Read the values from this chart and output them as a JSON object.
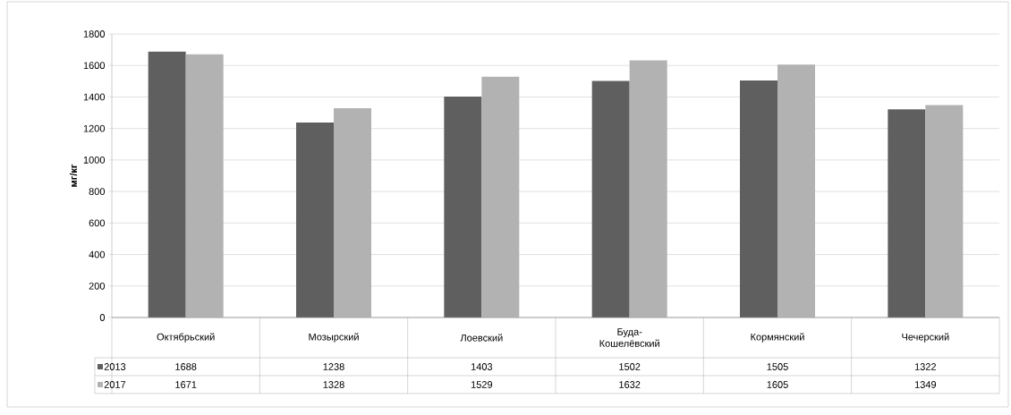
{
  "chart_data": {
    "type": "bar",
    "ylabel": "мг/кг",
    "categories": [
      "Октябрьский",
      "Мозырский",
      "Лоевский",
      "Буда-Кошелёвский",
      "Кормянский",
      "Чечерский"
    ],
    "series": [
      {
        "name": "2013",
        "color": "#5f5f5f",
        "values": [
          1688,
          1238,
          1403,
          1502,
          1505,
          1322
        ]
      },
      {
        "name": "2017",
        "color": "#b2b2b2",
        "values": [
          1671,
          1328,
          1529,
          1632,
          1605,
          1349
        ]
      }
    ],
    "ylim": [
      0,
      1800
    ],
    "yticks": [
      0,
      200,
      400,
      600,
      800,
      1000,
      1200,
      1400,
      1600,
      1800
    ],
    "grid": "y",
    "legend": "bottom",
    "data_labels": true
  }
}
